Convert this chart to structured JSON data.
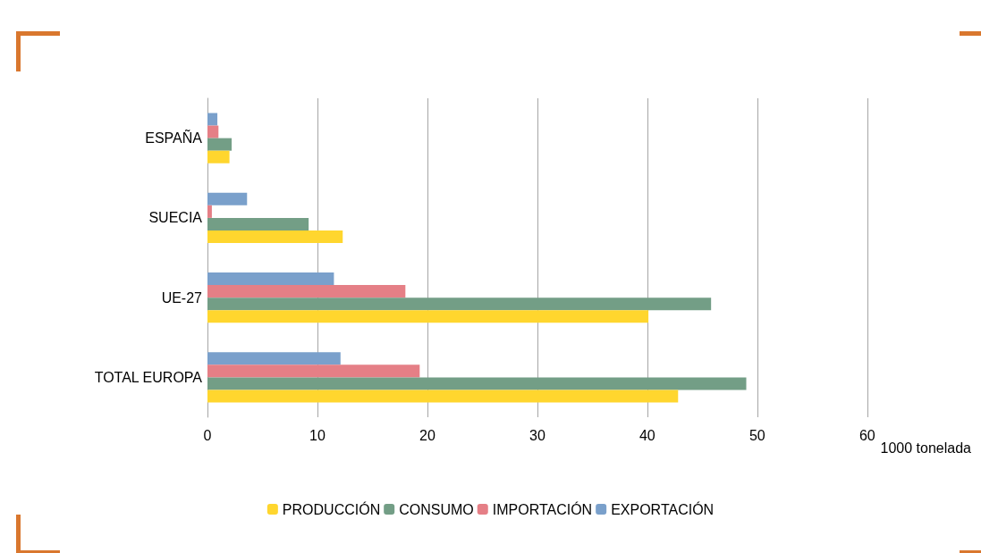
{
  "chart_data": {
    "type": "bar",
    "orientation": "horizontal",
    "categories": [
      "ESPAÑA",
      "SUECIA",
      "UE-27",
      "TOTAL EUROPA"
    ],
    "series": [
      {
        "name": "PRODUCCIÓN",
        "color": "#ffd62e",
        "values": [
          2.0,
          12.3,
          40.1,
          42.8
        ]
      },
      {
        "name": "CONSUMO",
        "color": "#739e86",
        "values": [
          2.2,
          9.2,
          45.8,
          49.0
        ]
      },
      {
        "name": "IMPORTACIÓN",
        "color": "#e57f86",
        "values": [
          1.0,
          0.4,
          18.0,
          19.3
        ]
      },
      {
        "name": "EXPORTACIÓN",
        "color": "#7aa0cb",
        "values": [
          0.9,
          3.6,
          11.5,
          12.1
        ]
      }
    ],
    "xlim": [
      0,
      60
    ],
    "xticks": [
      0,
      10,
      20,
      30,
      40,
      50,
      60
    ],
    "xlabel": "1000 tonelada",
    "grid": "x",
    "legend": "bottom"
  }
}
